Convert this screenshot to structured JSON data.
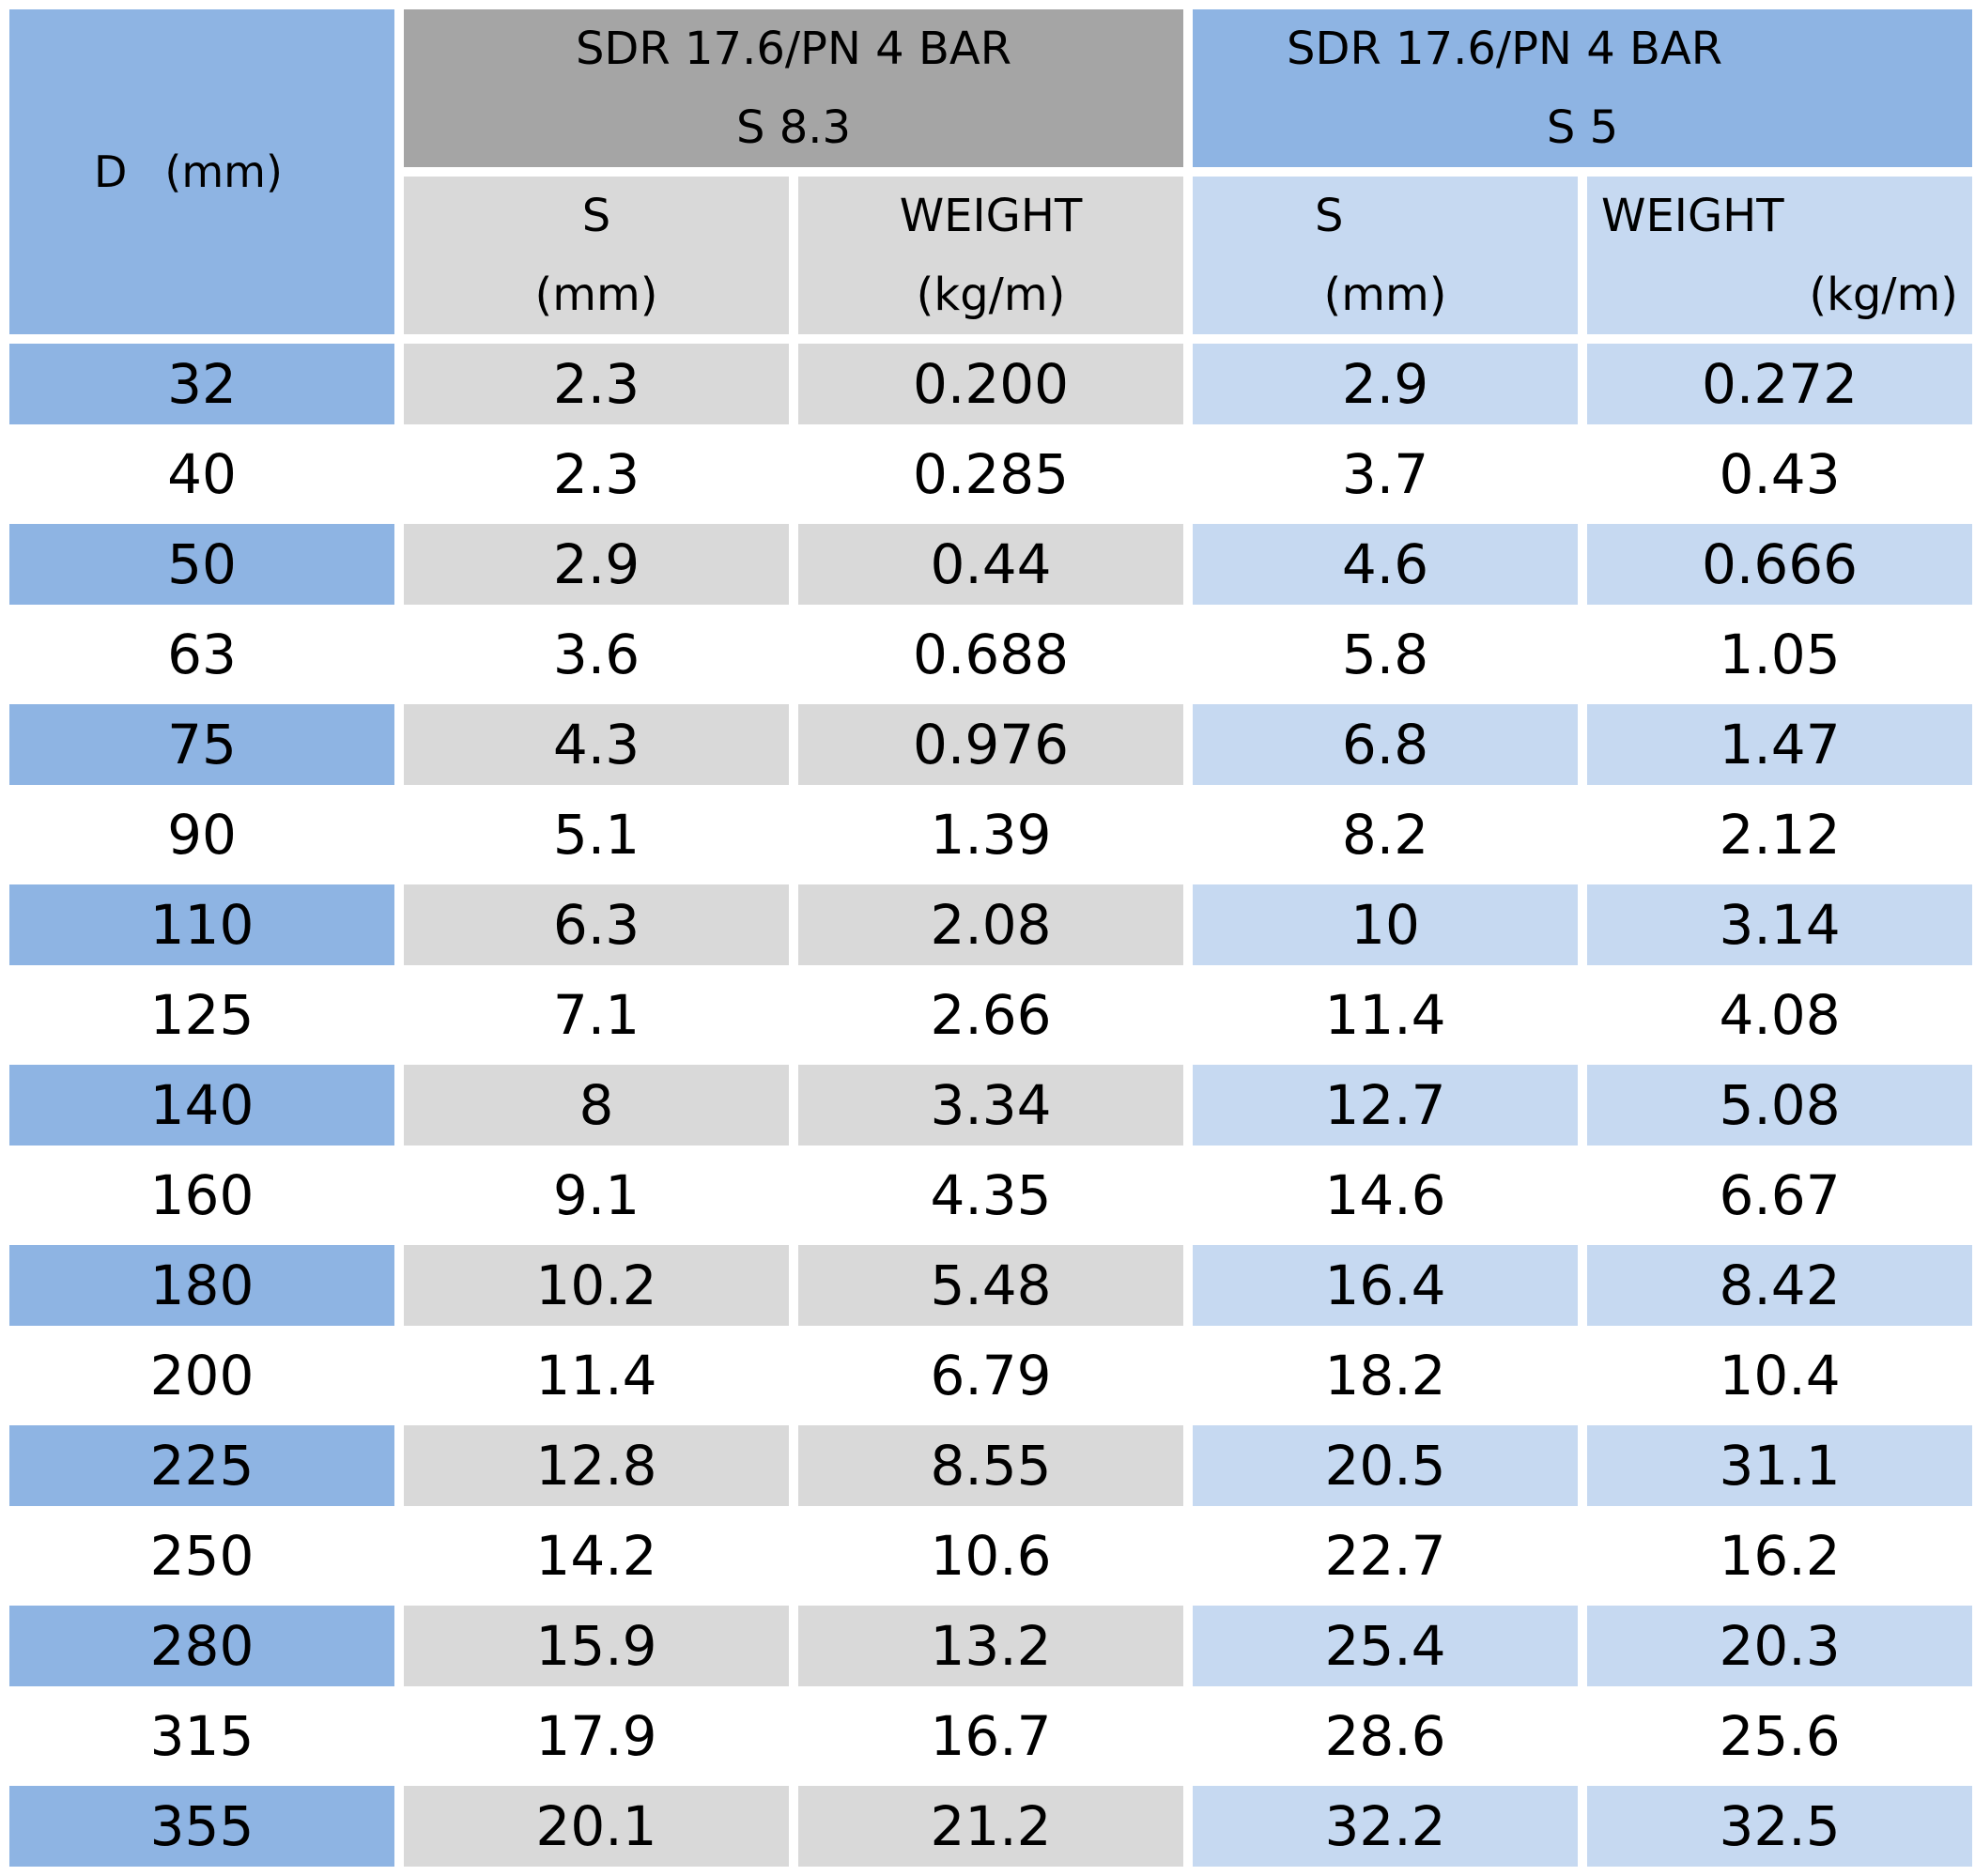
{
  "header": {
    "d_label": "D",
    "d_unit": "(mm)",
    "groups": [
      {
        "line1": "SDR 17.6/PN 4 BAR",
        "line2": "S 8.3"
      },
      {
        "line1": "SDR 17.6/PN 4 BAR",
        "line2": "S 5"
      }
    ],
    "sub": {
      "s_label": "S",
      "s_unit": "(mm)",
      "w_label": "WEIGHT",
      "w_unit": "(kg/m)"
    }
  },
  "rows": [
    [
      "32",
      "2.3",
      "0.200",
      "2.9",
      "0.272"
    ],
    [
      "40",
      "2.3",
      "0.285",
      "3.7",
      "0.43"
    ],
    [
      "50",
      "2.9",
      "0.44",
      "4.6",
      "0.666"
    ],
    [
      "63",
      "3.6",
      "0.688",
      "5.8",
      "1.05"
    ],
    [
      "75",
      "4.3",
      "0.976",
      "6.8",
      "1.47"
    ],
    [
      "90",
      "5.1",
      "1.39",
      "8.2",
      "2.12"
    ],
    [
      "110",
      "6.3",
      "2.08",
      "10",
      "3.14"
    ],
    [
      "125",
      "7.1",
      "2.66",
      "11.4",
      "4.08"
    ],
    [
      "140",
      "8",
      "3.34",
      "12.7",
      "5.08"
    ],
    [
      "160",
      "9.1",
      "4.35",
      "14.6",
      "6.67"
    ],
    [
      "180",
      "10.2",
      "5.48",
      "16.4",
      "8.42"
    ],
    [
      "200",
      "11.4",
      "6.79",
      "18.2",
      "10.4"
    ],
    [
      "225",
      "12.8",
      "8.55",
      "20.5",
      "31.1"
    ],
    [
      "250",
      "14.2",
      "10.6",
      "22.7",
      "16.2"
    ],
    [
      "280",
      "15.9",
      "13.2",
      "25.4",
      "20.3"
    ],
    [
      "315",
      "17.9",
      "16.7",
      "28.6",
      "25.6"
    ],
    [
      "355",
      "20.1",
      "21.2",
      "32.2",
      "32.5"
    ]
  ],
  "colors": {
    "d_column": "#8eb4e3",
    "group_a_header": "#a5a5a5",
    "group_a_cell": "#d9d9d9",
    "group_b_header": "#8eb4e3",
    "group_b_cell": "#c6d9f1"
  }
}
